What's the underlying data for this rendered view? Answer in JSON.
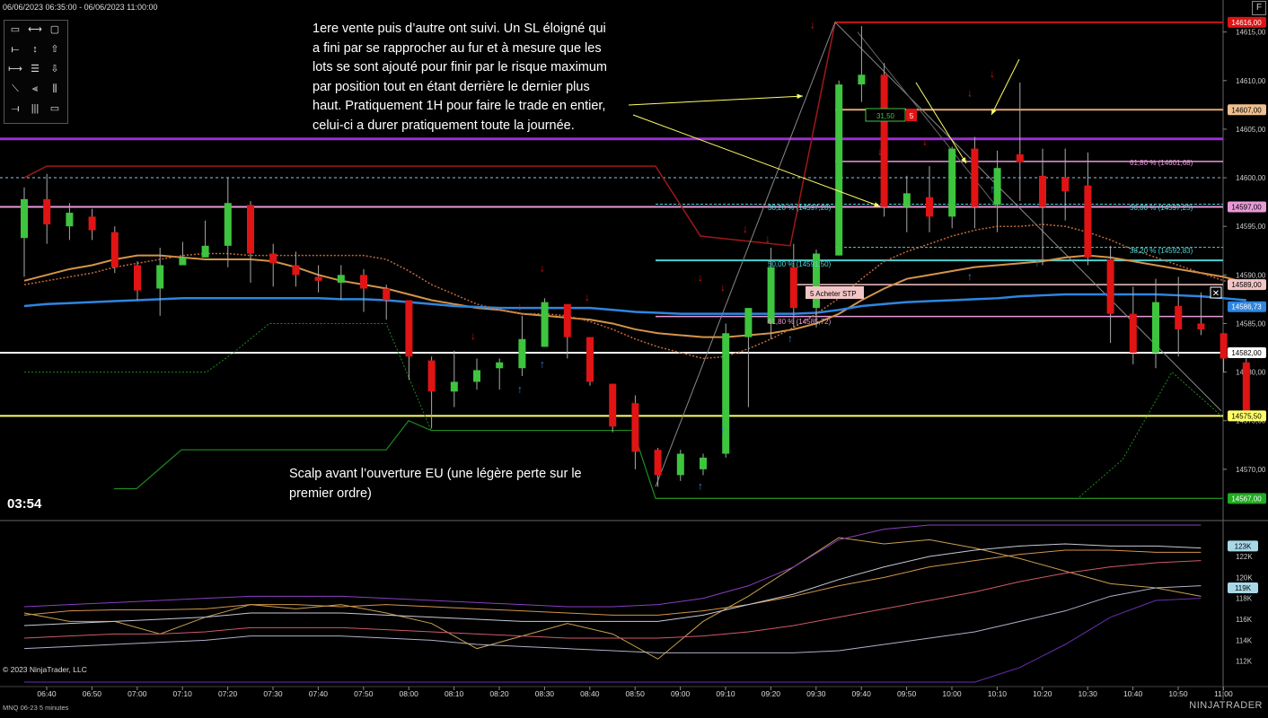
{
  "header": {
    "date_range": "06/06/2023 06:35:00 - 06/06/2023 11:00:00",
    "expand_button": "F"
  },
  "toolbox": {
    "tools": [
      "ruler-icon",
      "range-arrow-icon",
      "rectangle-icon",
      "line-icon",
      "vertical-arrow-icon",
      "up-arrow-icon",
      "ray-icon",
      "fibonacci-icon",
      "down-arrow-icon",
      "diagonal-line-icon",
      "fib-extension-icon",
      "pitchfork-icon",
      "extended-line-icon",
      "vertical-lines-icon",
      "region-icon"
    ]
  },
  "annotations": {
    "top_text": "1ere vente puis d’autre ont suivi. Un SL éloigné qui a fini par se rapprocher au fur et à mesure que les lots se sont ajouté pour finir par le risque maximum par position tout en étant derrière le dernier plus haut. Pratiquement 1H pour faire le trade en entier, celui-ci a durer pratiquement toute la journée.",
    "top_lines": [
      "1ere vente puis d’autre ont suivi. Un SL éloigné qui",
      "a fini par se rapprocher au fur et à mesure que les",
      "lots se sont ajouté pour finir par le risque maximum",
      "par position tout en étant derrière le dernier plus",
      "haut. Pratiquement 1H pour faire le trade en entier,",
      "celui-ci a durer pratiquement toute la journée."
    ],
    "bottom_lines": [
      "Scalp avant l’ouverture EU (une légère perte sur le",
      "premier ordre)"
    ]
  },
  "timer": "03:54",
  "copyright": "© 2023 NinjaTrader, LLC",
  "instrument": "MNQ 06-23 5 minutes",
  "logo": "NINJATRADER",
  "colors": {
    "background": "#000000",
    "up_candle": "#3ec43e",
    "down_candle": "#e01414",
    "ema_blue": "#2e86e0",
    "ma_orange": "#d4944a",
    "hline_white": "#ffffff",
    "hline_yellow": "#ffff66",
    "hline_purple": "#9b2fd1",
    "hline_pink": "#e89ad8",
    "hline_red": "#e01414",
    "fib_cyan": "#4fd1d1",
    "arrow_yellow": "#ffff66"
  },
  "chart_data": {
    "type": "candlestick",
    "x_labels": [
      "06:40",
      "06:50",
      "07:00",
      "07:10",
      "07:20",
      "07:30",
      "07:40",
      "07:50",
      "08:00",
      "08:10",
      "08:20",
      "08:30",
      "08:40",
      "08:50",
      "09:00",
      "09:10",
      "09:20",
      "09:30",
      "09:40",
      "09:50",
      "10:00",
      "10:10",
      "10:20",
      "10:30",
      "10:40",
      "10:50",
      "11:00"
    ],
    "ylim": [
      14565,
      14617
    ],
    "y_ticks": [
      "14570,00",
      "14575,00",
      "14580,00",
      "14585,00",
      "14590,00",
      "14595,00",
      "14600,00",
      "14605,00",
      "14610,00",
      "14615,00"
    ],
    "candles": [
      {
        "o": 14593.8,
        "h": 14599.0,
        "l": 14589.8,
        "c": 14597.8
      },
      {
        "o": 14597.8,
        "h": 14600.4,
        "l": 14593.2,
        "c": 14595.2
      },
      {
        "o": 14595.0,
        "h": 14597.4,
        "l": 14593.6,
        "c": 14596.4
      },
      {
        "o": 14596.0,
        "h": 14596.8,
        "l": 14593.6,
        "c": 14594.6
      },
      {
        "o": 14594.4,
        "h": 14595.0,
        "l": 14590.2,
        "c": 14590.8
      },
      {
        "o": 14591.0,
        "h": 14591.4,
        "l": 14587.4,
        "c": 14588.4
      },
      {
        "o": 14588.6,
        "h": 14592.8,
        "l": 14585.8,
        "c": 14591.0
      },
      {
        "o": 14591.0,
        "h": 14593.4,
        "l": 14591.0,
        "c": 14591.8
      },
      {
        "o": 14591.8,
        "h": 14595.6,
        "l": 14591.8,
        "c": 14593.0
      },
      {
        "o": 14593.0,
        "h": 14600.0,
        "l": 14590.8,
        "c": 14597.4
      },
      {
        "o": 14597.2,
        "h": 14597.6,
        "l": 14589.2,
        "c": 14592.2
      },
      {
        "o": 14592.2,
        "h": 14593.2,
        "l": 14588.8,
        "c": 14591.2
      },
      {
        "o": 14591.0,
        "h": 14592.4,
        "l": 14588.8,
        "c": 14590.0
      },
      {
        "o": 14589.8,
        "h": 14591.0,
        "l": 14588.2,
        "c": 14589.4
      },
      {
        "o": 14589.2,
        "h": 14591.0,
        "l": 14587.4,
        "c": 14590.0
      },
      {
        "o": 14590.0,
        "h": 14590.6,
        "l": 14586.2,
        "c": 14588.6
      },
      {
        "o": 14588.6,
        "h": 14589.0,
        "l": 14585.4,
        "c": 14587.4
      },
      {
        "o": 14587.4,
        "h": 14587.4,
        "l": 14579.2,
        "c": 14581.6
      },
      {
        "o": 14581.2,
        "h": 14581.6,
        "l": 14574.2,
        "c": 14578.0
      },
      {
        "o": 14578.0,
        "h": 14582.2,
        "l": 14576.4,
        "c": 14579.0
      },
      {
        "o": 14579.0,
        "h": 14581.4,
        "l": 14578.2,
        "c": 14580.2
      },
      {
        "o": 14580.4,
        "h": 14581.4,
        "l": 14578.2,
        "c": 14581.0
      },
      {
        "o": 14580.4,
        "h": 14585.8,
        "l": 14579.6,
        "c": 14583.4
      },
      {
        "o": 14582.6,
        "h": 14587.6,
        "l": 14582.6,
        "c": 14587.2
      },
      {
        "o": 14587.0,
        "h": 14587.0,
        "l": 14581.4,
        "c": 14583.6
      },
      {
        "o": 14583.6,
        "h": 14583.6,
        "l": 14578.6,
        "c": 14579.0
      },
      {
        "o": 14578.8,
        "h": 14578.8,
        "l": 14573.8,
        "c": 14574.4
      },
      {
        "o": 14576.8,
        "h": 14577.6,
        "l": 14570.0,
        "c": 14571.8
      },
      {
        "o": 14572.0,
        "h": 14572.2,
        "l": 14568.2,
        "c": 14569.4
      },
      {
        "o": 14569.4,
        "h": 14572.0,
        "l": 14568.8,
        "c": 14571.6
      },
      {
        "o": 14570.0,
        "h": 14571.6,
        "l": 14569.4,
        "c": 14571.2
      },
      {
        "o": 14571.6,
        "h": 14585.0,
        "l": 14571.2,
        "c": 14584.0
      },
      {
        "o": 14583.6,
        "h": 14586.2,
        "l": 14576.4,
        "c": 14586.6
      },
      {
        "o": 14585.0,
        "h": 14592.8,
        "l": 14583.4,
        "c": 14590.8
      },
      {
        "o": 14590.8,
        "h": 14593.2,
        "l": 14584.6,
        "c": 14586.6
      },
      {
        "o": 14586.6,
        "h": 14592.6,
        "l": 14584.6,
        "c": 14592.2
      },
      {
        "o": 14592.0,
        "h": 14610.0,
        "l": 14592.0,
        "c": 14609.6
      },
      {
        "o": 14609.6,
        "h": 14615.6,
        "l": 14607.8,
        "c": 14610.6
      },
      {
        "o": 14610.6,
        "h": 14611.8,
        "l": 14596.0,
        "c": 14597.0
      },
      {
        "o": 14597.0,
        "h": 14600.2,
        "l": 14594.4,
        "c": 14598.4
      },
      {
        "o": 14598.0,
        "h": 14601.2,
        "l": 14594.4,
        "c": 14596.0
      },
      {
        "o": 14596.0,
        "h": 14603.2,
        "l": 14594.8,
        "c": 14603.0
      },
      {
        "o": 14603.0,
        "h": 14604.2,
        "l": 14594.8,
        "c": 14597.0
      },
      {
        "o": 14597.2,
        "h": 14602.8,
        "l": 14594.4,
        "c": 14601.0
      },
      {
        "o": 14602.4,
        "h": 14609.8,
        "l": 14597.6,
        "c": 14601.6
      },
      {
        "o": 14600.2,
        "h": 14603.0,
        "l": 14591.0,
        "c": 14597.0
      },
      {
        "o": 14600.0,
        "h": 14603.0,
        "l": 14595.6,
        "c": 14598.6
      },
      {
        "o": 14599.2,
        "h": 14602.6,
        "l": 14591.0,
        "c": 14591.8
      },
      {
        "o": 14591.6,
        "h": 14593.0,
        "l": 14583.0,
        "c": 14586.0
      },
      {
        "o": 14586.0,
        "h": 14588.8,
        "l": 14580.8,
        "c": 14582.0
      },
      {
        "o": 14582.0,
        "h": 14589.6,
        "l": 14580.4,
        "c": 14587.2
      },
      {
        "o": 14586.8,
        "h": 14589.8,
        "l": 14581.6,
        "c": 14584.4
      },
      {
        "o": 14585.0,
        "h": 14588.2,
        "l": 14583.8,
        "c": 14584.4
      },
      {
        "o": 14584.0,
        "h": 14584.0,
        "l": 14580.0,
        "c": 14581.4
      },
      {
        "o": 14581.0,
        "h": 14581.4,
        "l": 14575.6,
        "c": 14575.8
      }
    ],
    "price_tags": [
      {
        "label": "14616,00",
        "value": 14616.0,
        "color": "#e01414"
      },
      {
        "label": "14607,00",
        "value": 14607.0,
        "color": "#f0c090"
      },
      {
        "label": "14597,00",
        "value": 14597.0,
        "color": "#e89ad8"
      },
      {
        "label": "14589,00",
        "value": 14589.0,
        "color": "#f2c6c6"
      },
      {
        "label": "14586,73",
        "value": 14586.73,
        "color": "#2e86e0"
      },
      {
        "label": "14582,00",
        "value": 14582.0,
        "color": "#ffffff"
      },
      {
        "label": "14575,50",
        "value": 14575.5,
        "color": "#ffff66"
      },
      {
        "label": "14567,00",
        "value": 14567.0,
        "color": "#22aa22"
      }
    ],
    "fib_labels": [
      {
        "text": "61,80 % (14601,68)",
        "value": 14601.68
      },
      {
        "text": "38,20 % (14597,28)",
        "value": 14597.28
      },
      {
        "text": "50,00 % (14597,25)",
        "value": 14597.25
      },
      {
        "text": "38,20 % (14592,83)",
        "value": 14592.83
      },
      {
        "text": "50,00 % (14591,50)",
        "value": 14591.5
      },
      {
        "text": "61,80 % (14585,72)",
        "value": 14585.72
      }
    ],
    "order_markers": [
      {
        "text": "31,50",
        "color": "#3ec43e"
      },
      {
        "text": "5",
        "color": "#e01414"
      },
      {
        "text": "5  Acheter STP",
        "color": "#f2c6c6"
      }
    ],
    "indicator": {
      "ylim": [
        110,
        125
      ],
      "y_ticks": [
        "112K",
        "114K",
        "116K",
        "118K",
        "120K",
        "122K"
      ],
      "tags": [
        {
          "label": "123K",
          "value": 123
        },
        {
          "label": "119K",
          "value": 119
        }
      ]
    }
  }
}
